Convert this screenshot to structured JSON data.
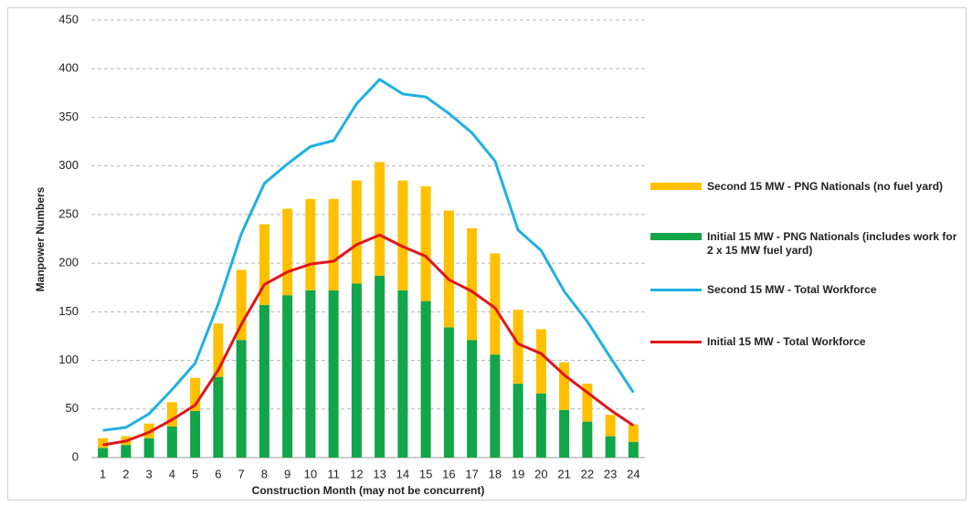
{
  "chart_data": {
    "type": "bar",
    "x_label": "Construction Month (may not be concurrent)",
    "y_label": "Manpower Numbers",
    "categories": [
      "1",
      "2",
      "3",
      "4",
      "5",
      "6",
      "7",
      "8",
      "9",
      "10",
      "11",
      "12",
      "13",
      "14",
      "15",
      "16",
      "17",
      "18",
      "19",
      "20",
      "21",
      "22",
      "23",
      "24"
    ],
    "ylim": [
      0,
      450
    ],
    "yticks": [
      0,
      50,
      100,
      150,
      200,
      250,
      300,
      350,
      400,
      450
    ],
    "grid": true,
    "legend": "right",
    "series": [
      {
        "name": "Second 15 MW - PNG Nationals (no fuel yard)",
        "type": "bar",
        "color": "#ffc000",
        "values": [
          10,
          9,
          15,
          25,
          34,
          55,
          72,
          83,
          89,
          94,
          94,
          106,
          117,
          113,
          118,
          120,
          115,
          104,
          76,
          66,
          49,
          39,
          22,
          18
        ]
      },
      {
        "name": "Initial 15 MW - PNG Nationals (includes work for 2 x 15 MW fuel yard)",
        "type": "bar",
        "color": "#12a54a",
        "values": [
          10,
          13,
          20,
          32,
          48,
          83,
          121,
          157,
          167,
          172,
          172,
          179,
          187,
          172,
          161,
          134,
          121,
          106,
          76,
          66,
          49,
          37,
          22,
          16
        ]
      },
      {
        "name": "Second 15 MW - Total Workforce",
        "type": "line",
        "color": "#1fb0e0",
        "values": [
          28,
          31,
          45,
          70,
          97,
          158,
          230,
          282,
          302,
          320,
          326,
          364,
          389,
          374,
          371,
          354,
          334,
          305,
          234,
          213,
          171,
          140,
          103,
          67
        ]
      },
      {
        "name": "Initial 15 MW - Total Workforce",
        "type": "line",
        "color": "#e0161b",
        "values": [
          13,
          17,
          26,
          39,
          54,
          90,
          137,
          178,
          191,
          199,
          202,
          219,
          229,
          217,
          207,
          183,
          171,
          154,
          117,
          107,
          85,
          67,
          49,
          33
        ]
      }
    ]
  }
}
